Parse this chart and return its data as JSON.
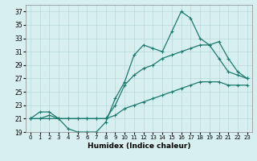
{
  "xlabel": "Humidex (Indice chaleur)",
  "x_values": [
    0,
    1,
    2,
    3,
    4,
    5,
    6,
    7,
    8,
    9,
    10,
    11,
    12,
    13,
    14,
    15,
    16,
    17,
    18,
    19,
    20,
    21,
    22,
    23
  ],
  "line1": [
    21,
    22,
    22,
    21,
    19.5,
    19,
    19,
    19,
    20.5,
    24,
    26.5,
    30.5,
    32,
    31.5,
    31,
    34,
    37,
    36,
    33,
    32,
    30,
    28,
    27.5,
    27
  ],
  "line2": [
    21,
    21,
    21.5,
    21,
    21,
    21,
    21,
    21,
    21,
    23,
    26,
    27.5,
    28.5,
    29,
    30,
    30.5,
    31,
    31.5,
    32,
    32,
    32.5,
    30,
    28,
    27
  ],
  "line3": [
    21,
    21,
    21,
    21,
    21,
    21,
    21,
    21,
    21,
    21.5,
    22.5,
    23,
    23.5,
    24,
    24.5,
    25,
    25.5,
    26,
    26.5,
    26.5,
    26.5,
    26,
    26,
    26
  ],
  "line_color": "#1a7a6e",
  "bg_color": "#d8eff0",
  "grid_color": "#b8d8da",
  "ylim": [
    19,
    38
  ],
  "xlim": [
    -0.5,
    23.5
  ],
  "yticks": [
    19,
    21,
    23,
    25,
    27,
    29,
    31,
    33,
    35,
    37
  ],
  "xticks": [
    0,
    1,
    2,
    3,
    4,
    5,
    6,
    7,
    8,
    9,
    10,
    11,
    12,
    13,
    14,
    15,
    16,
    17,
    18,
    19,
    20,
    21,
    22,
    23
  ],
  "marker": "+",
  "markersize": 3.5,
  "linewidth": 0.9
}
